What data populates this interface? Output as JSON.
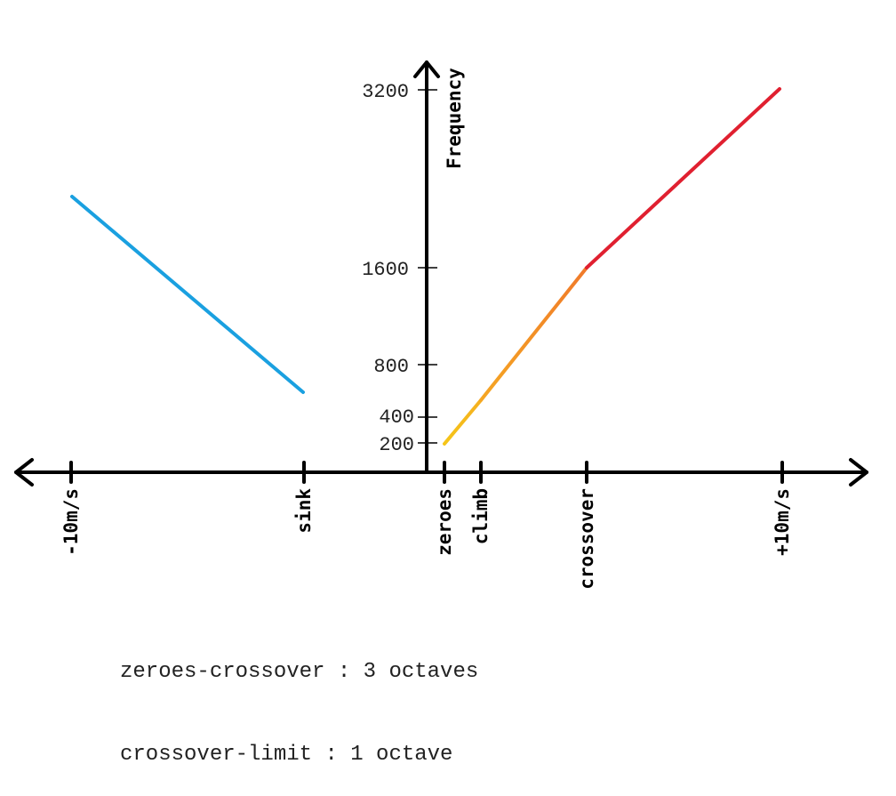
{
  "diagram": {
    "y_axis_title": "Frequency",
    "y_ticks": [
      {
        "label": "3200",
        "value": 3200
      },
      {
        "label": "1600",
        "value": 1600
      },
      {
        "label": "800",
        "value": 800
      },
      {
        "label": "400",
        "value": 400
      },
      {
        "label": "200",
        "value": 200
      }
    ],
    "x_ticks": [
      {
        "key": "neg10",
        "label": "-10m/s"
      },
      {
        "key": "sink",
        "label": "sink"
      },
      {
        "key": "zeroes",
        "label": "zeroes"
      },
      {
        "key": "climb",
        "label": "climb"
      },
      {
        "key": "crossover",
        "label": "crossover"
      },
      {
        "key": "pos10",
        "label": "+10m/s"
      }
    ],
    "segments": [
      {
        "name": "sink",
        "from": "neg10",
        "to": "sink",
        "color": "#1aa0e0"
      },
      {
        "name": "zeroes-climb",
        "from": "zeroes",
        "to": "climb",
        "color_start": "#f5c518",
        "color_end": "#f5b020"
      },
      {
        "name": "climb-crossover",
        "from": "climb",
        "to": "crossover",
        "color_start": "#f5a623",
        "color_end": "#f07a2a"
      },
      {
        "name": "crossover-limit",
        "from": "crossover",
        "to": "pos10",
        "color": "#e02030"
      }
    ],
    "notes": [
      "zeroes-crossover : 3 octaves",
      "crossover-limit : 1 octave"
    ]
  }
}
